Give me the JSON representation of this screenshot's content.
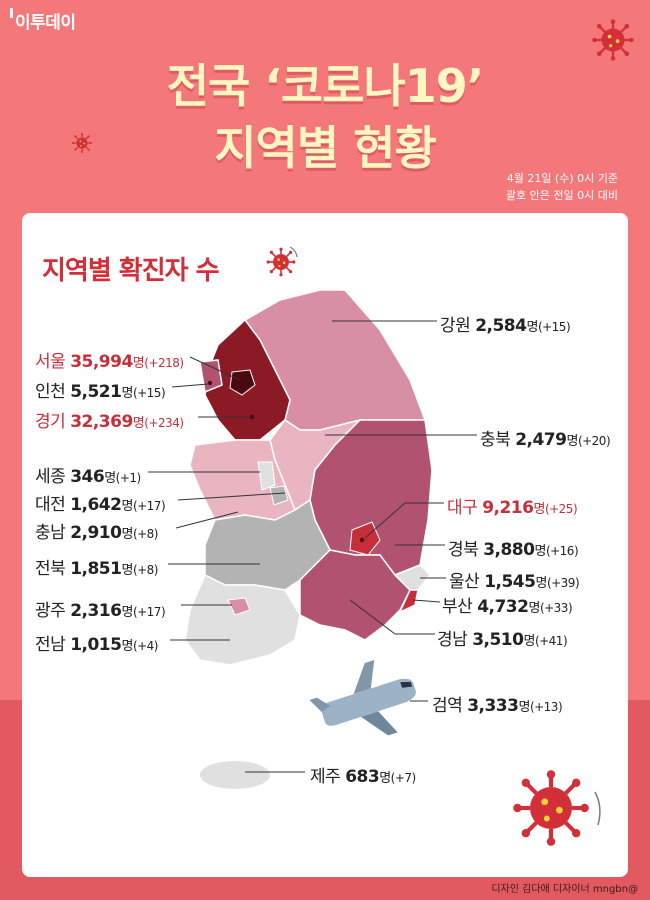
{
  "logo": "이투데이",
  "title": {
    "line1": "전국 ‘코로나19’",
    "line2": "지역별 현황"
  },
  "date": {
    "line1": "4월 21일 (수) 0시 기준",
    "line2": "괄호 안은 전일 0시 대비"
  },
  "heading": "지역별 확진자 수",
  "unit": "명",
  "regions": {
    "gangwon": {
      "name": "강원",
      "count": "2,584",
      "inc": "(+15)"
    },
    "seoul": {
      "name": "서울",
      "count": "35,994",
      "inc": "(+218)"
    },
    "incheon": {
      "name": "인천",
      "count": "5,521",
      "inc": "(+15)"
    },
    "gyeonggi": {
      "name": "경기",
      "count": "32,369",
      "inc": "(+234)"
    },
    "chungbuk": {
      "name": "충북",
      "count": "2,479",
      "inc": "(+20)"
    },
    "sejong": {
      "name": "세종",
      "count": "346",
      "inc": "(+1)"
    },
    "daejeon": {
      "name": "대전",
      "count": "1,642",
      "inc": "(+17)"
    },
    "daegu": {
      "name": "대구",
      "count": "9,216",
      "inc": "(+25)"
    },
    "chungnam": {
      "name": "충남",
      "count": "2,910",
      "inc": "(+8)"
    },
    "gyeongbuk": {
      "name": "경북",
      "count": "3,880",
      "inc": "(+16)"
    },
    "jeonbuk": {
      "name": "전북",
      "count": "1,851",
      "inc": "(+8)"
    },
    "ulsan": {
      "name": "울산",
      "count": "1,545",
      "inc": "(+39)"
    },
    "gwangju": {
      "name": "광주",
      "count": "2,316",
      "inc": "(+17)"
    },
    "busan": {
      "name": "부산",
      "count": "4,732",
      "inc": "(+33)"
    },
    "jeonnam": {
      "name": "전남",
      "count": "1,015",
      "inc": "(+4)"
    },
    "gyeongnam": {
      "name": "경남",
      "count": "3,510",
      "inc": "(+41)"
    },
    "quarantine": {
      "name": "검역",
      "count": "3,333",
      "inc": "(+13)"
    },
    "jeju": {
      "name": "제주",
      "count": "683",
      "inc": "(+7)"
    }
  },
  "credit": "디자인 김다애 디자이너 mngbn@",
  "colors": {
    "background": "#f4777a",
    "title": "#fff6c2",
    "highlight": "#c62f3a",
    "darkest": "#8c1a24",
    "dark": "#b05270",
    "mid": "#d98fa3",
    "light": "#e8b5c1",
    "gray": "#b3b3b3",
    "lightgray": "#e0e0e0"
  }
}
